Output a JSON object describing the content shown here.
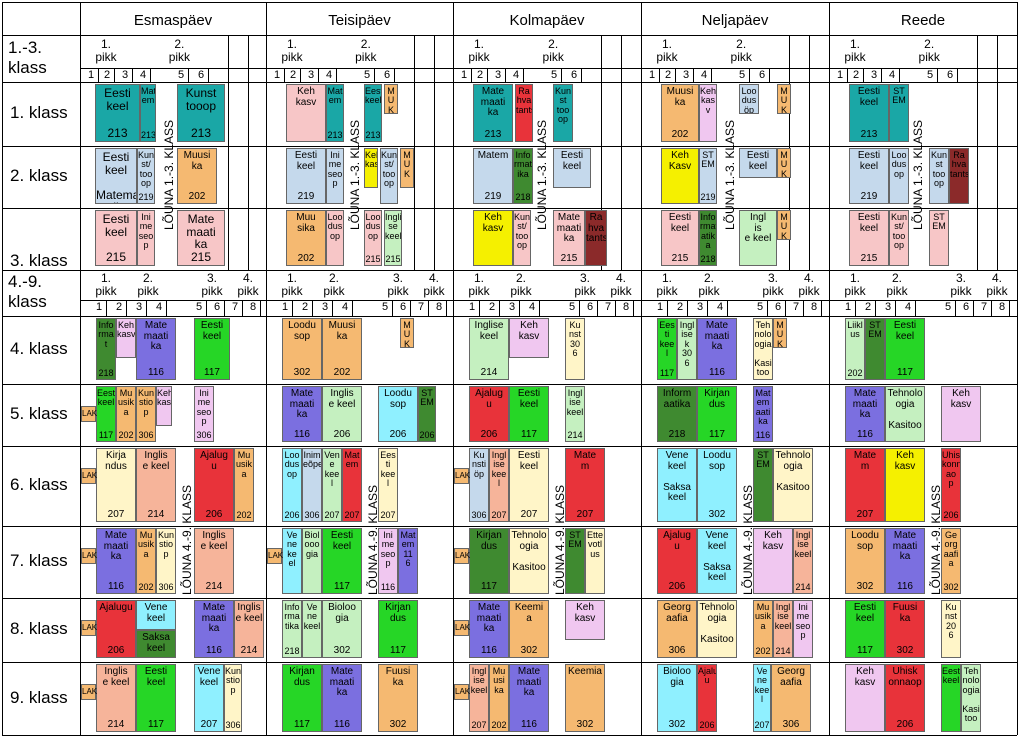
{
  "days": [
    "Esmaspäev",
    "Teisipäev",
    "Kolmapäev",
    "Neljapäev",
    "Reede"
  ],
  "groups": {
    "primary": "1.-3.\nklass",
    "secondary": "4.-9.\nklass"
  },
  "periods": {
    "p1": "1.\npikk",
    "p2": "2.\npikk",
    "p3": "3.\npikk",
    "p4": "4.\npikk",
    "prim_p2": "2. pikk"
  },
  "lessons_primary": [
    "1",
    "2",
    "3",
    "4",
    "5",
    "6"
  ],
  "lessons_secondary": [
    "1",
    "2",
    "3",
    "4",
    "5",
    "6",
    "7",
    "8"
  ],
  "classes": [
    "1. klass",
    "2. klass",
    "3. klass",
    "4. klass",
    "5. klass",
    "6. klass",
    "7. klass",
    "8. klass",
    "9. klass"
  ],
  "lunch": {
    "primary": "LÕUNA 1.-3. KLASS",
    "secondary": "LÕUNA 4.-9. KLASS"
  },
  "lak": "LAK",
  "colors": {
    "teal": "#1aa7a6",
    "lightblue": "#c5d9ec",
    "pink": "#f7c6c7",
    "orange": "#f5b971",
    "purple": "#7b6fe0",
    "green": "#26d626",
    "red": "#e8333a",
    "yellow": "#f5f000",
    "darkgreen": "#3f8a30",
    "lightgreen": "#c5f0c0",
    "maroon": "#8b2a2a",
    "cream": "#fff5c8",
    "lavender": "#f0c7f0",
    "cyan": "#8ff0ff",
    "salmon": "#f6b49a"
  }
}
